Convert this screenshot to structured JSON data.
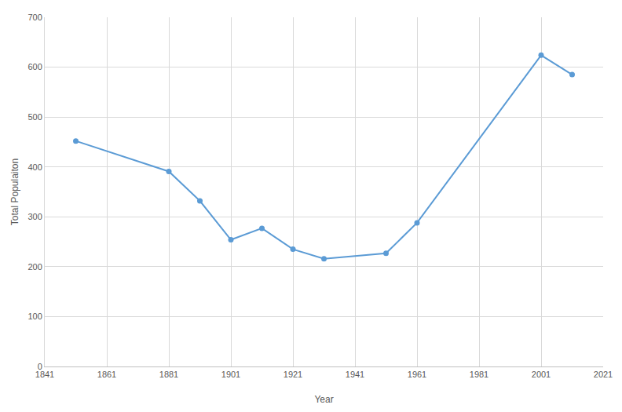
{
  "chart_data": {
    "type": "line",
    "x_label": "Year",
    "y_label": "Total Populaiton",
    "x": [
      1851,
      1881,
      1891,
      1901,
      1911,
      1921,
      1931,
      1951,
      1961,
      2001,
      2011
    ],
    "values": [
      452,
      391,
      332,
      254,
      277,
      235,
      216,
      227,
      288,
      624,
      585
    ],
    "color": "#5b9bd5",
    "marker": "circle",
    "xlim": [
      1841,
      2021
    ],
    "xticks": [
      1841,
      1861,
      1881,
      1901,
      1921,
      1941,
      1961,
      1981,
      2001,
      2021
    ],
    "ylim": [
      0,
      700
    ],
    "yticks": [
      0,
      100,
      200,
      300,
      400,
      500,
      600,
      700
    ],
    "grid": true
  }
}
